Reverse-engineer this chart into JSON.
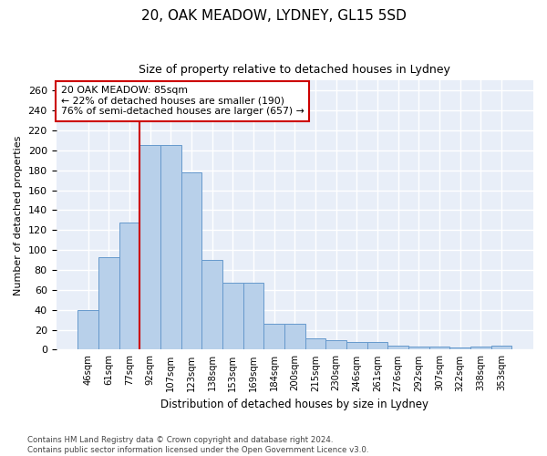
{
  "title": "20, OAK MEADOW, LYDNEY, GL15 5SD",
  "subtitle": "Size of property relative to detached houses in Lydney",
  "xlabel": "Distribution of detached houses by size in Lydney",
  "ylabel": "Number of detached properties",
  "bar_labels": [
    "46sqm",
    "61sqm",
    "77sqm",
    "92sqm",
    "107sqm",
    "123sqm",
    "138sqm",
    "153sqm",
    "169sqm",
    "184sqm",
    "200sqm",
    "215sqm",
    "230sqm",
    "246sqm",
    "261sqm",
    "276sqm",
    "292sqm",
    "307sqm",
    "322sqm",
    "338sqm",
    "353sqm"
  ],
  "bar_values": [
    40,
    93,
    128,
    205,
    205,
    178,
    90,
    67,
    67,
    26,
    26,
    11,
    10,
    8,
    8,
    4,
    3,
    3,
    2,
    3,
    4
  ],
  "bar_color": "#b8d0ea",
  "bar_edge_color": "#6699cc",
  "vline_color": "#cc0000",
  "annotation_text": "20 OAK MEADOW: 85sqm\n← 22% of detached houses are smaller (190)\n76% of semi-detached houses are larger (657) →",
  "annotation_box_color": "white",
  "annotation_box_edge": "#cc0000",
  "ylim": [
    0,
    270
  ],
  "yticks": [
    0,
    20,
    40,
    60,
    80,
    100,
    120,
    140,
    160,
    180,
    200,
    220,
    240,
    260
  ],
  "footer_line1": "Contains HM Land Registry data © Crown copyright and database right 2024.",
  "footer_line2": "Contains public sector information licensed under the Open Government Licence v3.0.",
  "bg_color": "#e8eef8",
  "fig_bg_color": "#ffffff"
}
